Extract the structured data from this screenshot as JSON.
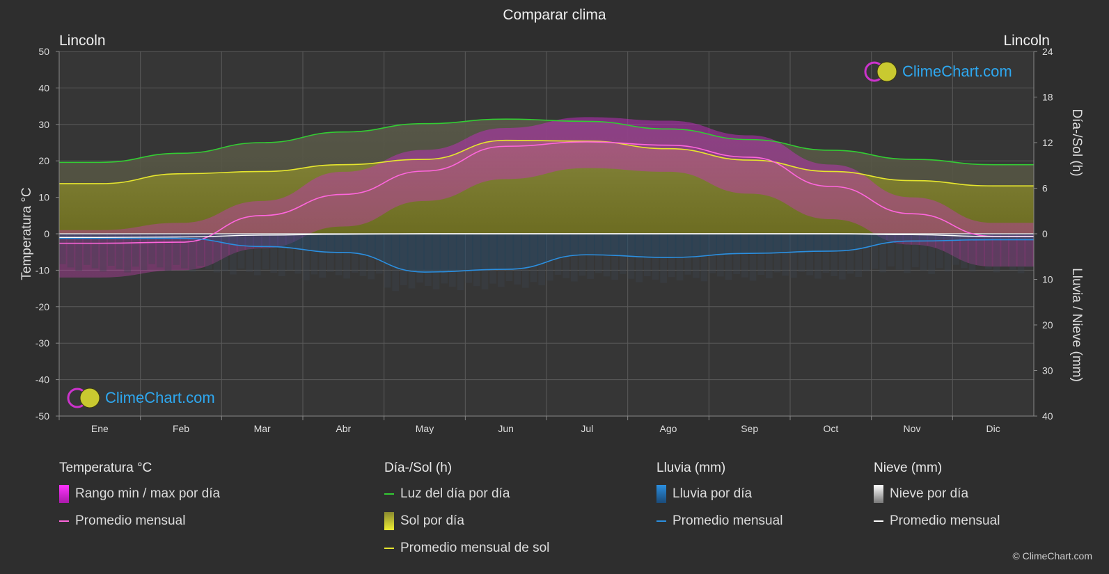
{
  "header": {
    "title": "Comparar clima",
    "location_left": "Lincoln",
    "location_right": "Lincoln"
  },
  "chart_data": {
    "type": "line",
    "x": [
      "Ene",
      "Feb",
      "Mar",
      "Abr",
      "May",
      "Jun",
      "Jul",
      "Ago",
      "Sep",
      "Oct",
      "Nov",
      "Dic"
    ],
    "axes": {
      "left": {
        "label": "Temperatura °C",
        "min": -50,
        "max": 50,
        "ticks": [
          50,
          40,
          30,
          20,
          10,
          0,
          -10,
          -20,
          -30,
          -40,
          -50
        ]
      },
      "right_top": {
        "label": "Día-/Sol (h)",
        "min": 0,
        "max": 24,
        "ticks": [
          24,
          18,
          12,
          6,
          0
        ]
      },
      "right_bottom": {
        "label": "Lluvia / Nieve (mm)",
        "min": 0,
        "max": 40,
        "ticks": [
          0,
          10,
          20,
          30,
          40
        ]
      }
    },
    "grid": true,
    "series": [
      {
        "name": "Luz del día por día",
        "axis": "hours",
        "color": "#33cc33",
        "values": [
          9.4,
          10.6,
          12.0,
          13.4,
          14.5,
          15.1,
          14.8,
          13.8,
          12.4,
          11.0,
          9.8,
          9.1
        ]
      },
      {
        "name": "Promedio mensual de sol",
        "axis": "hours",
        "color": "#e6e62e",
        "values": [
          6.6,
          7.9,
          8.2,
          9.1,
          9.8,
          12.3,
          12.2,
          11.2,
          9.7,
          8.2,
          7.0,
          6.3
        ]
      },
      {
        "name": "Promedio mensual",
        "group": "Temperatura °C",
        "axis": "temp",
        "color": "#ff66dd",
        "values": [
          -2.6,
          -2.3,
          5.0,
          10.8,
          17.2,
          24.0,
          25.2,
          24.3,
          21.0,
          13.0,
          5.5,
          -0.7
        ]
      },
      {
        "name": "Promedio mensual",
        "group": "Lluvia (mm)",
        "axis": "precip",
        "color": "#2b8fe0",
        "values": [
          1.0,
          1.0,
          2.8,
          4.1,
          8.4,
          7.8,
          4.6,
          5.2,
          4.3,
          3.8,
          1.6,
          1.3
        ]
      },
      {
        "name": "Promedio mensual",
        "group": "Nieve (mm)",
        "axis": "precip",
        "color": "#ffffff",
        "values": [
          0.8,
          0.7,
          0.3,
          0.1,
          0.0,
          0.0,
          0.0,
          0.0,
          0.0,
          0.0,
          0.2,
          0.6
        ]
      }
    ],
    "temp_range": {
      "name": "Rango min / max por día",
      "max": [
        1,
        3,
        9,
        17,
        23,
        29,
        32,
        31,
        27,
        19,
        10,
        3
      ],
      "min": [
        -12,
        -10,
        -4,
        2,
        9,
        15,
        18,
        17,
        11,
        4,
        -3,
        -9
      ]
    }
  },
  "legend": {
    "groups": [
      {
        "title": "Temperatura °C",
        "items": [
          {
            "label": "Rango min / max por día",
            "kind": "box",
            "color": "#dd22dd"
          },
          {
            "label": "Promedio mensual",
            "kind": "line",
            "color": "#ff66dd"
          }
        ]
      },
      {
        "title": "Día-/Sol (h)",
        "items": [
          {
            "label": "Luz del día por día",
            "kind": "line",
            "color": "#33cc33"
          },
          {
            "label": "Sol por día",
            "kind": "box",
            "color": "#d8d830"
          },
          {
            "label": "Promedio mensual de sol",
            "kind": "line",
            "color": "#e6e62e"
          }
        ]
      },
      {
        "title": "Lluvia (mm)",
        "items": [
          {
            "label": "Lluvia por día",
            "kind": "box",
            "color": "#2b8fe0"
          },
          {
            "label": "Promedio mensual",
            "kind": "line",
            "color": "#2b8fe0"
          }
        ]
      },
      {
        "title": "Nieve (mm)",
        "items": [
          {
            "label": "Nieve por día",
            "kind": "box",
            "color": "#dddddd"
          },
          {
            "label": "Promedio mensual",
            "kind": "line",
            "color": "#ffffff"
          }
        ]
      }
    ]
  },
  "branding": {
    "logo_text": "ClimeChart.com",
    "copyright": "© ClimeChart.com"
  }
}
